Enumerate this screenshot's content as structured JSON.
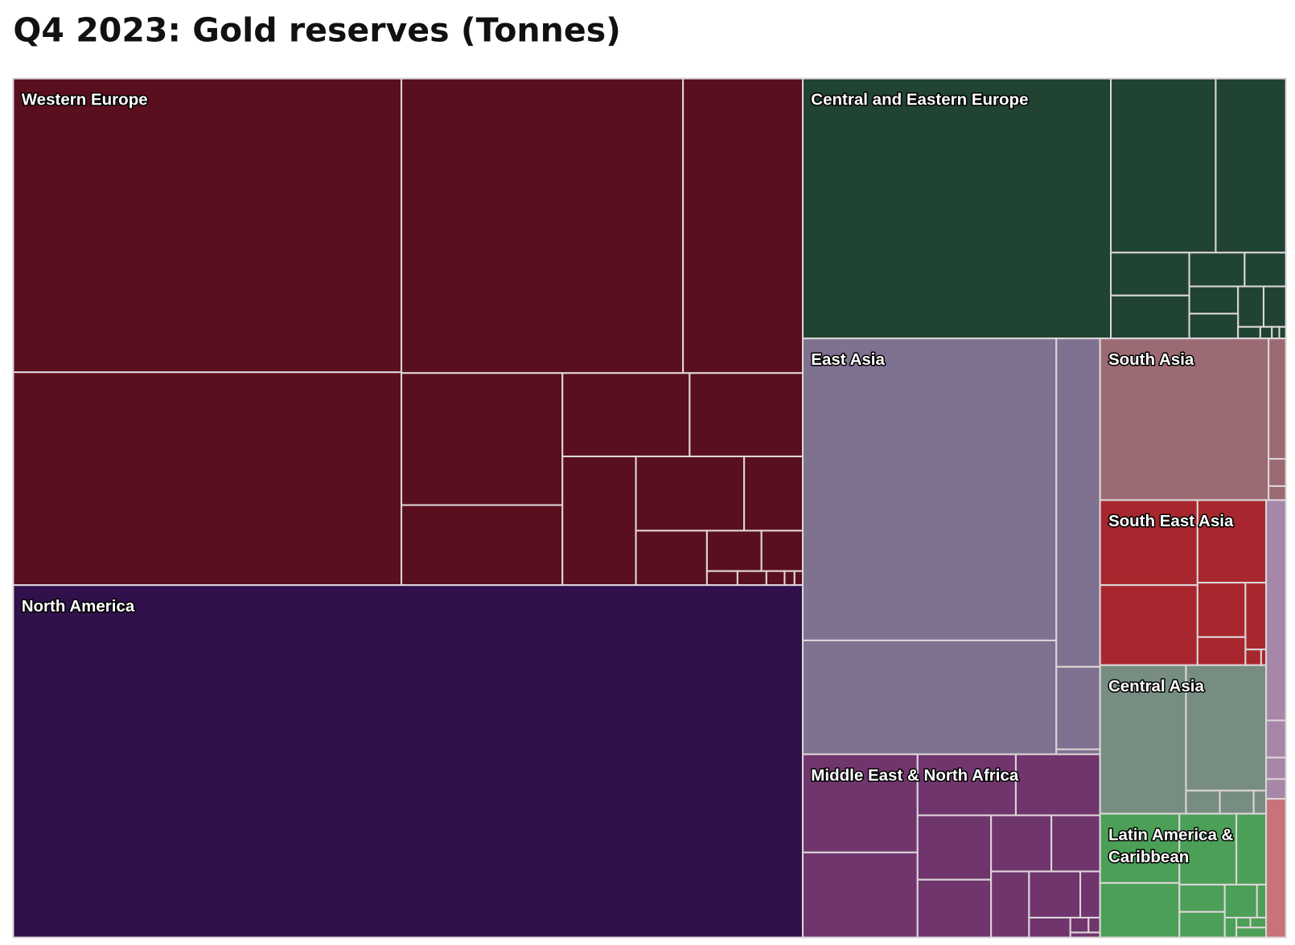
{
  "chart_data": {
    "type": "treemap",
    "title": "Q4 2023: Gold reserves (Tonnes)",
    "unit": "Tonnes",
    "regions": [
      {
        "id": "we",
        "name": "Western Europe",
        "value": 11700,
        "color": "#5a0f1e"
      },
      {
        "id": "na",
        "name": "North America",
        "value": 8133,
        "color": "#30114b"
      },
      {
        "id": "cee",
        "name": "Central and Eastern Europe",
        "value": 3670,
        "color": "#204332"
      },
      {
        "id": "ea",
        "name": "East Asia",
        "value": 3614,
        "color": "#7f7190"
      },
      {
        "id": "mena",
        "name": "Middle East & North Africa",
        "value": 1592,
        "color": "#70356d"
      },
      {
        "id": "sa",
        "name": "South Asia",
        "value": 878,
        "color": "#9b6a72"
      },
      {
        "id": "sea",
        "name": "South East Asia",
        "value": 801,
        "color": "#a8272e"
      },
      {
        "id": "ca",
        "name": "Central Asia",
        "value": 720,
        "color": "#778d82"
      },
      {
        "id": "lac",
        "name": "Latin America & Caribbean",
        "name_lines": [
          "Latin America &",
          "Caribbean"
        ],
        "value": 600,
        "color": "#4c9f57"
      },
      {
        "id": "r10",
        "value": 173,
        "color": "#a687a8"
      },
      {
        "id": "r11",
        "value": 80,
        "color": "#c8727a"
      }
    ]
  }
}
